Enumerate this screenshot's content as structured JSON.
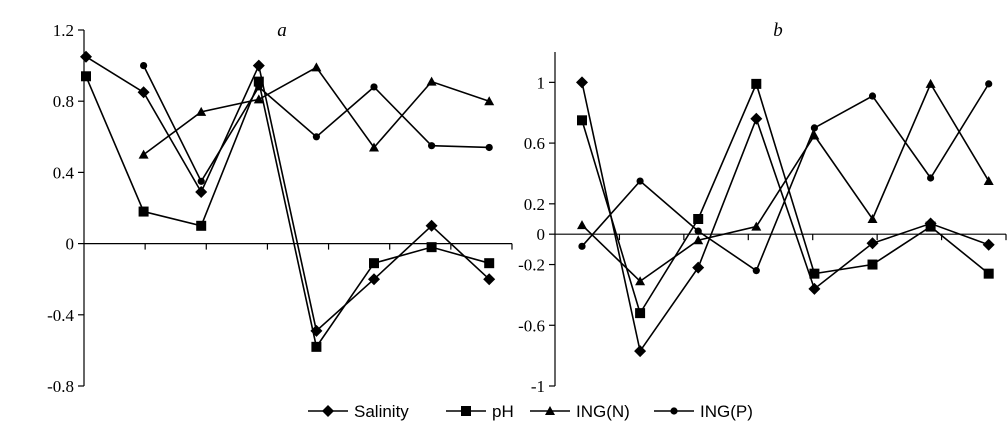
{
  "chart_data": [
    {
      "type": "line",
      "title": "a",
      "xlabel": "",
      "ylabel": "",
      "ylim": [
        -0.8,
        1.2
      ],
      "yticks": [
        "1.2",
        "0.8",
        "0.4",
        "0",
        "-0.4",
        "-0.8"
      ],
      "ytick_values": [
        1.2,
        0.8,
        0.4,
        0,
        -0.4,
        -0.8
      ],
      "x_categories": 7,
      "grid": false,
      "series": [
        {
          "name": "Salinity",
          "marker": "diamond",
          "x": [
            0,
            1,
            2,
            3,
            4,
            5,
            6,
            7
          ],
          "y": [
            1.05,
            0.85,
            0.29,
            1.0,
            -0.49,
            -0.2,
            0.1,
            -0.2
          ]
        },
        {
          "name": "pH",
          "marker": "square",
          "x": [
            0,
            1,
            2,
            3,
            4,
            5,
            6,
            7
          ],
          "y": [
            0.94,
            0.18,
            0.1,
            0.91,
            -0.58,
            -0.11,
            -0.02,
            -0.11
          ]
        },
        {
          "name": "ING(N)",
          "marker": "triangle",
          "x": [
            1,
            2,
            3,
            4,
            5,
            6,
            7
          ],
          "y": [
            0.5,
            0.74,
            0.81,
            0.99,
            0.54,
            0.91,
            0.8
          ]
        },
        {
          "name": "ING(P)",
          "marker": "circle",
          "x": [
            1,
            2,
            3,
            4,
            5,
            6,
            7
          ],
          "y": [
            1.0,
            0.35,
            0.88,
            0.6,
            0.88,
            0.55,
            0.54
          ]
        }
      ]
    },
    {
      "type": "line",
      "title": "b",
      "xlabel": "",
      "ylabel": "",
      "ylim": [
        -1,
        1.2
      ],
      "yticks": [
        "1",
        "0.6",
        "0.2",
        "0",
        "-0.2",
        "-0.6",
        "-1"
      ],
      "ytick_values": [
        1,
        0.6,
        0.2,
        0,
        -0.2,
        -0.6,
        -1
      ],
      "x_categories": 7,
      "grid": false,
      "series": [
        {
          "name": "Salinity",
          "marker": "diamond",
          "x": [
            0,
            1,
            2,
            3,
            4,
            5,
            6,
            7
          ],
          "y": [
            1.0,
            -0.77,
            -0.22,
            0.76,
            -0.36,
            -0.06,
            0.07,
            -0.07
          ]
        },
        {
          "name": "pH",
          "marker": "square",
          "x": [
            0,
            1,
            2,
            3,
            4,
            5,
            6,
            7
          ],
          "y": [
            0.75,
            -0.52,
            0.1,
            0.99,
            -0.26,
            -0.2,
            0.05,
            -0.26
          ]
        },
        {
          "name": "ING(N)",
          "marker": "triangle",
          "x": [
            0,
            1,
            2,
            3,
            4,
            5,
            6,
            7
          ],
          "y": [
            0.06,
            -0.31,
            -0.04,
            0.05,
            0.65,
            0.1,
            0.99,
            0.35
          ]
        },
        {
          "name": "ING(P)",
          "marker": "circle",
          "x": [
            0,
            1,
            2,
            3,
            4,
            5,
            6,
            7
          ],
          "y": [
            -0.08,
            0.35,
            0.02,
            -0.24,
            0.7,
            0.91,
            0.37,
            0.99
          ]
        }
      ]
    }
  ],
  "legend": {
    "placement": "bottom-center",
    "items": [
      {
        "label": "Salinity",
        "marker": "diamond"
      },
      {
        "label": "pH",
        "marker": "square"
      },
      {
        "label": "ING(N)",
        "marker": "triangle"
      },
      {
        "label": "ING(P)",
        "marker": "circle"
      }
    ]
  },
  "colors": {
    "ink": "#000000",
    "background": "#ffffff"
  }
}
